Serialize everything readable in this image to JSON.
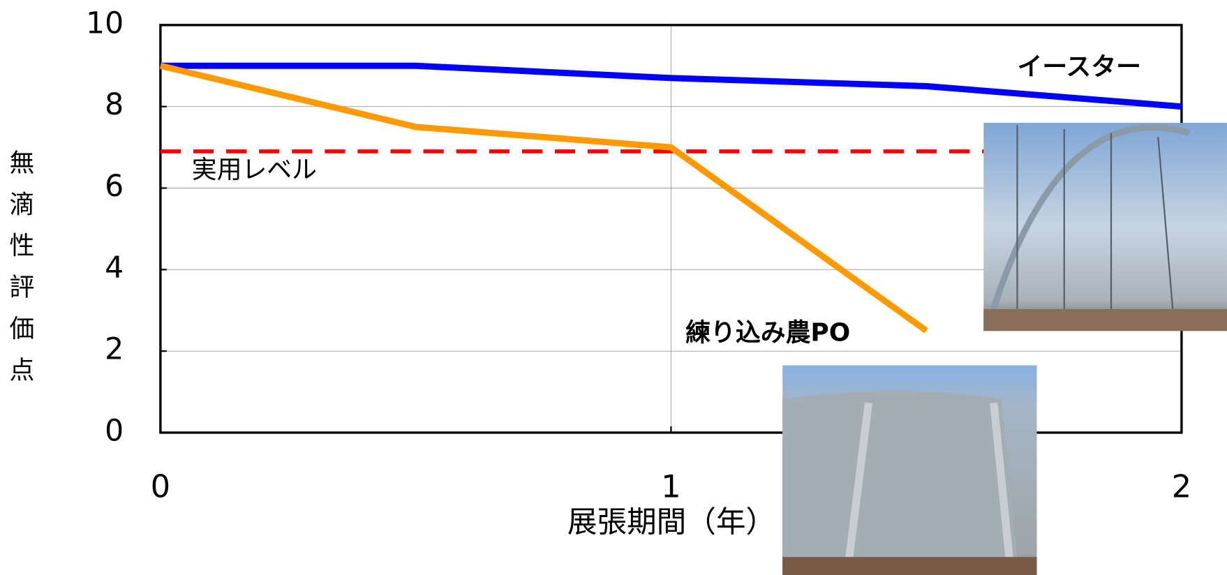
{
  "chart_data": {
    "type": "line",
    "x": [
      0,
      0.5,
      1,
      1.5,
      2
    ],
    "series": [
      {
        "name": "イースター",
        "color": "#0000ff",
        "values": [
          9,
          9,
          8.7,
          8.5,
          8.0
        ]
      },
      {
        "name": "練り込み農PO",
        "color": "#ff9900",
        "values": [
          9,
          7.5,
          7.0,
          2.5,
          null
        ]
      }
    ],
    "reference_line": {
      "value": 6.9,
      "label": "実用レベル",
      "color": "#ff0000"
    },
    "xlabel": "展張期間（年）",
    "ylabel": "無滴性評価点",
    "xlim": [
      0,
      2
    ],
    "xticks": [
      0,
      1,
      2
    ],
    "ylim": [
      0,
      10
    ],
    "yticks": [
      0,
      2,
      4,
      6,
      8,
      10
    ],
    "grid": true
  }
}
